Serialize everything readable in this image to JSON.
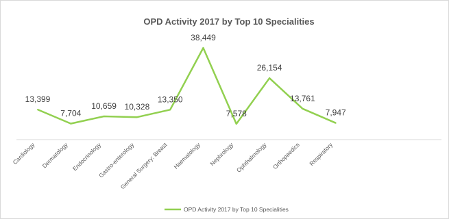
{
  "chart_data": {
    "type": "line",
    "title": "OPD Activity 2017 by Top 10 Specialities",
    "categories": [
      "Cardiology",
      "Dermatology",
      "Endocrinology",
      "Gastro-enterology",
      "General Surgery: Breast",
      "Haematology",
      "Nephrology",
      "Ophthalmology",
      "Orthopaedics",
      "Respiratory"
    ],
    "series": [
      {
        "name": "OPD Activity 2017 by Top 10 Specialities",
        "values": [
          13399,
          7704,
          10659,
          10328,
          13350,
          38449,
          7578,
          26154,
          13761,
          7947
        ],
        "labels": [
          "13,399",
          "7,704",
          "10,659",
          "10,328",
          "13,350",
          "38,449",
          "7,578",
          "26,154",
          "13,761",
          "7,947"
        ],
        "color": "#92d050"
      }
    ],
    "xlabel": "",
    "ylabel": "",
    "y_axis_visible": false,
    "grid": false,
    "legend_position": "bottom"
  }
}
